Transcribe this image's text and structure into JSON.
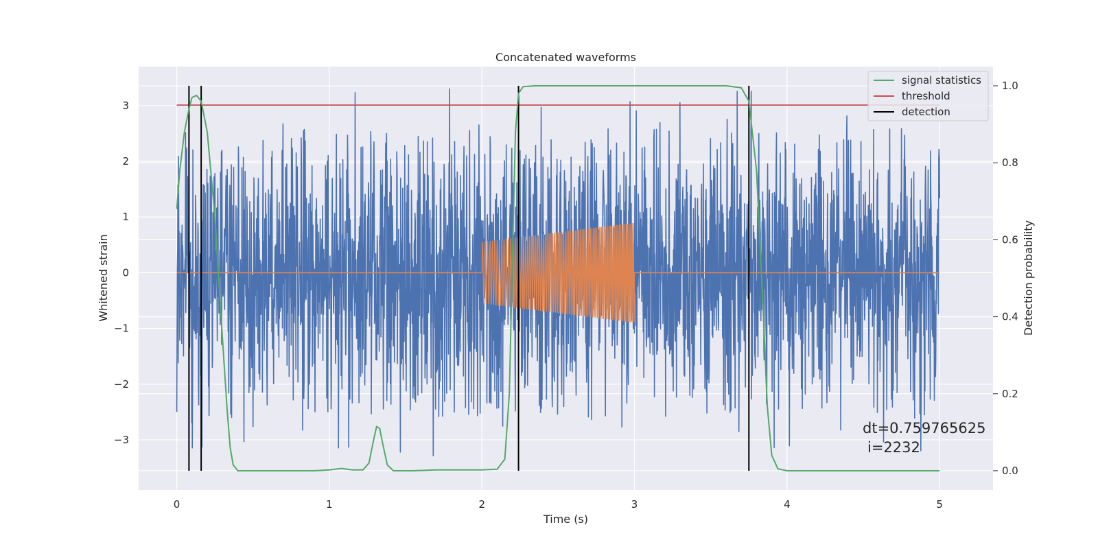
{
  "chart_data": {
    "type": "line",
    "title": "Concatenated waveforms",
    "xlabel": "Time (s)",
    "ylabel": "Whitened strain",
    "ylabel_right": "Detection probability",
    "xlim": [
      -0.25,
      5.35
    ],
    "ylim": [
      -3.9,
      3.7
    ],
    "ylim_right": [
      -0.05,
      1.05
    ],
    "x_ticks": [
      0,
      1,
      2,
      3,
      4,
      5
    ],
    "y_ticks": [
      -3,
      -2,
      -1,
      0,
      1,
      2,
      3
    ],
    "y_ticks_right": [
      0.0,
      0.2,
      0.4,
      0.6,
      0.8,
      1.0
    ],
    "grid": true,
    "legend_position": "top-right",
    "legend": [
      "signal statistics",
      "threshold",
      "detection"
    ],
    "colors": {
      "strain": "#4c72b0",
      "injection": "#dd8452",
      "signal_statistics": "#55a868",
      "threshold": "#c44e52",
      "detection": "#000000",
      "plot_background": "#eaeaf2"
    },
    "series": [
      {
        "role": "strain",
        "axis": "left",
        "x_range": [
          0,
          5
        ],
        "noise_core_amplitude": 0.8,
        "noise_spike_max": 3.3
      },
      {
        "role": "injection",
        "axis": "left",
        "x_range": [
          2,
          3
        ],
        "amplitude_start": 0.55,
        "amplitude_end": 0.9
      },
      {
        "name": "signal statistics",
        "axis": "right",
        "points": [
          [
            0.0,
            0.68
          ],
          [
            0.02,
            0.78
          ],
          [
            0.05,
            0.88
          ],
          [
            0.08,
            0.94
          ],
          [
            0.1,
            0.97
          ],
          [
            0.13,
            0.975
          ],
          [
            0.16,
            0.96
          ],
          [
            0.2,
            0.88
          ],
          [
            0.25,
            0.66
          ],
          [
            0.3,
            0.34
          ],
          [
            0.33,
            0.16
          ],
          [
            0.35,
            0.06
          ],
          [
            0.37,
            0.015
          ],
          [
            0.4,
            0.0
          ],
          [
            0.6,
            0.0
          ],
          [
            0.9,
            0.0
          ],
          [
            1.0,
            0.002
          ],
          [
            1.08,
            0.006
          ],
          [
            1.15,
            0.002
          ],
          [
            1.22,
            0.002
          ],
          [
            1.26,
            0.02
          ],
          [
            1.29,
            0.08
          ],
          [
            1.31,
            0.115
          ],
          [
            1.33,
            0.11
          ],
          [
            1.35,
            0.07
          ],
          [
            1.38,
            0.015
          ],
          [
            1.42,
            0.0
          ],
          [
            1.55,
            0.0
          ],
          [
            1.7,
            0.002
          ],
          [
            2.0,
            0.002
          ],
          [
            2.1,
            0.004
          ],
          [
            2.15,
            0.03
          ],
          [
            2.18,
            0.2
          ],
          [
            2.2,
            0.55
          ],
          [
            2.22,
            0.88
          ],
          [
            2.24,
            0.98
          ],
          [
            2.27,
            0.998
          ],
          [
            2.35,
            1.0
          ],
          [
            3.0,
            1.0
          ],
          [
            3.6,
            1.0
          ],
          [
            3.7,
            0.995
          ],
          [
            3.75,
            0.96
          ],
          [
            3.8,
            0.78
          ],
          [
            3.84,
            0.45
          ],
          [
            3.87,
            0.17
          ],
          [
            3.9,
            0.04
          ],
          [
            3.94,
            0.005
          ],
          [
            4.0,
            0.0
          ],
          [
            4.5,
            0.0
          ],
          [
            5.0,
            0.0
          ]
        ]
      },
      {
        "name": "threshold",
        "axis": "right",
        "points": [
          [
            0,
            0.95
          ],
          [
            5,
            0.95
          ]
        ]
      }
    ],
    "detection_times": [
      0.08,
      0.16,
      2.24,
      3.75
    ],
    "annotations": [
      "dt=0.759765625",
      "i=2232"
    ]
  }
}
